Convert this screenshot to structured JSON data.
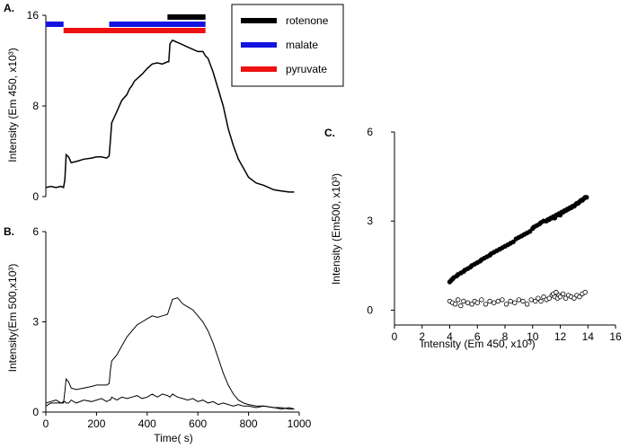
{
  "chart_data": [
    {
      "panel": "A.",
      "type": "line",
      "ylabel": "Intensity (Em 450, x10³)",
      "xlim": [
        0,
        1000
      ],
      "ylim": [
        0,
        16
      ],
      "yticks": [
        0,
        8,
        16
      ],
      "x": [
        0,
        20,
        40,
        60,
        70,
        75,
        80,
        90,
        100,
        120,
        150,
        180,
        200,
        220,
        240,
        250,
        255,
        260,
        280,
        300,
        320,
        330,
        340,
        350,
        380,
        400,
        420,
        440,
        460,
        480,
        485,
        490,
        500,
        520,
        540,
        560,
        580,
        600,
        620,
        630,
        640,
        660,
        680,
        700,
        720,
        740,
        760,
        780,
        800,
        830,
        860,
        900,
        930,
        960,
        980
      ],
      "values": [
        0.8,
        0.9,
        0.8,
        0.9,
        0.8,
        1.5,
        3.7,
        3.5,
        3.0,
        3.1,
        3.3,
        3.4,
        3.5,
        3.5,
        3.4,
        3.6,
        5.0,
        6.5,
        7.5,
        8.5,
        9.0,
        9.5,
        9.8,
        10.2,
        10.8,
        11.3,
        11.7,
        11.8,
        11.7,
        11.9,
        11.9,
        13.5,
        13.8,
        13.6,
        13.4,
        13.2,
        13.0,
        12.8,
        12.8,
        12.4,
        12.2,
        11.0,
        9.5,
        8.0,
        6.0,
        4.5,
        3.3,
        2.5,
        1.7,
        1.2,
        1.0,
        0.6,
        0.5,
        0.4,
        0.4
      ],
      "bars": [
        {
          "name": "rotenone",
          "color": "#000000",
          "start": 480,
          "end": 630,
          "level": 1
        },
        {
          "name": "malate",
          "color": "#1414e0",
          "start": 0,
          "end": 70,
          "level": 2
        },
        {
          "name": "malate",
          "color": "#1414e0",
          "start": 250,
          "end": 630,
          "level": 2
        },
        {
          "name": "pyruvate",
          "color": "#ee1111",
          "start": 70,
          "end": 630,
          "level": 3
        }
      ],
      "legend": {
        "position": "top-right",
        "entries": [
          {
            "label": "rotenone",
            "color": "#000000"
          },
          {
            "label": "malate",
            "color": "#1414e0"
          },
          {
            "label": "pyruvate",
            "color": "#ee1111"
          }
        ]
      }
    },
    {
      "panel": "B.",
      "type": "line",
      "xlabel": "Time( s)",
      "ylabel": "Intensity(Em 500,x10³)",
      "xlim": [
        0,
        1000
      ],
      "ylim": [
        0,
        6
      ],
      "xticks": [
        0,
        200,
        400,
        600,
        800,
        1000
      ],
      "yticks": [
        0,
        3,
        6
      ],
      "x": [
        0,
        20,
        40,
        60,
        70,
        75,
        80,
        90,
        100,
        120,
        150,
        180,
        200,
        220,
        240,
        250,
        255,
        260,
        280,
        300,
        320,
        340,
        360,
        380,
        400,
        420,
        440,
        460,
        480,
        490,
        500,
        520,
        540,
        560,
        580,
        600,
        620,
        640,
        660,
        680,
        700,
        720,
        740,
        760,
        780,
        800,
        830,
        860,
        900,
        930,
        960,
        980
      ],
      "series": [
        {
          "values": [
            0.2,
            0.3,
            0.3,
            0.3,
            0.3,
            0.7,
            1.1,
            1.0,
            0.8,
            0.75,
            0.8,
            0.85,
            0.9,
            0.9,
            0.9,
            0.95,
            1.4,
            1.7,
            1.9,
            2.2,
            2.5,
            2.7,
            2.9,
            3.0,
            3.1,
            3.2,
            3.15,
            3.2,
            3.25,
            3.5,
            3.75,
            3.8,
            3.6,
            3.5,
            3.4,
            3.2,
            3.0,
            2.7,
            2.3,
            1.8,
            1.3,
            0.9,
            0.6,
            0.4,
            0.3,
            0.25,
            0.2,
            0.2,
            0.15,
            0.15,
            0.1,
            0.1
          ]
        },
        {
          "values": [
            0.3,
            0.35,
            0.4,
            0.3,
            0.35,
            0.35,
            0.3,
            0.3,
            0.4,
            0.3,
            0.4,
            0.35,
            0.4,
            0.45,
            0.35,
            0.4,
            0.4,
            0.5,
            0.4,
            0.5,
            0.45,
            0.5,
            0.55,
            0.45,
            0.5,
            0.6,
            0.5,
            0.6,
            0.55,
            0.5,
            0.6,
            0.5,
            0.45,
            0.4,
            0.45,
            0.35,
            0.4,
            0.3,
            0.35,
            0.25,
            0.3,
            0.25,
            0.2,
            0.25,
            0.2,
            0.2,
            0.15,
            0.2,
            0.15,
            0.1,
            0.15,
            0.1
          ]
        }
      ]
    },
    {
      "panel": "C.",
      "type": "scatter",
      "xlabel": "Intensity (Em 450, x10³)",
      "ylabel": "Intensity (Em500, x10³)",
      "xlim": [
        0,
        16
      ],
      "ylim": [
        -0.5,
        6
      ],
      "xticks": [
        0,
        2,
        4,
        6,
        8,
        10,
        12,
        14,
        16
      ],
      "yticks": [
        0,
        3,
        6
      ],
      "series": [
        {
          "marker": "filled",
          "x": [
            4.0,
            4.1,
            4.2,
            4.3,
            4.5,
            4.6,
            4.8,
            5.0,
            5.1,
            5.3,
            5.5,
            5.6,
            5.8,
            6.0,
            6.2,
            6.3,
            6.5,
            6.7,
            6.9,
            7.0,
            7.2,
            7.4,
            7.6,
            7.8,
            8.0,
            8.2,
            8.4,
            8.6,
            8.8,
            9.0,
            9.2,
            9.4,
            9.6,
            9.8,
            10.0,
            10.1,
            10.3,
            10.5,
            10.6,
            10.8,
            11.0,
            11.1,
            11.2,
            11.3,
            11.4,
            11.5,
            11.6,
            11.7,
            11.8,
            11.9,
            12.0,
            12.1,
            12.2,
            12.3,
            12.4,
            12.5,
            12.6,
            12.7,
            12.8,
            12.9,
            13.0,
            13.1,
            13.2,
            13.3,
            13.4,
            13.5,
            13.6,
            13.7,
            13.8,
            13.9
          ],
          "y": [
            0.95,
            1.0,
            1.05,
            1.1,
            1.15,
            1.2,
            1.25,
            1.3,
            1.35,
            1.4,
            1.45,
            1.5,
            1.55,
            1.6,
            1.65,
            1.7,
            1.75,
            1.8,
            1.85,
            1.9,
            1.95,
            2.0,
            2.05,
            2.1,
            2.15,
            2.2,
            2.25,
            2.3,
            2.4,
            2.45,
            2.5,
            2.55,
            2.6,
            2.65,
            2.75,
            2.8,
            2.85,
            2.9,
            2.95,
            3.0,
            3.0,
            3.05,
            3.05,
            3.1,
            3.1,
            3.15,
            3.1,
            3.2,
            3.2,
            3.25,
            3.2,
            3.3,
            3.3,
            3.35,
            3.35,
            3.4,
            3.4,
            3.45,
            3.45,
            3.5,
            3.5,
            3.55,
            3.6,
            3.6,
            3.65,
            3.7,
            3.7,
            3.75,
            3.8,
            3.8
          ]
        },
        {
          "marker": "open",
          "x": [
            4.0,
            4.2,
            4.4,
            4.6,
            4.8,
            5.0,
            5.3,
            5.6,
            5.8,
            6.0,
            6.3,
            6.6,
            6.9,
            7.2,
            7.5,
            7.8,
            8.1,
            8.4,
            8.7,
            9.0,
            9.3,
            9.6,
            9.9,
            10.2,
            10.4,
            10.6,
            10.8,
            11.0,
            11.2,
            11.4,
            11.5,
            11.6,
            11.7,
            11.8,
            11.9,
            12.0,
            12.2,
            12.4,
            12.6,
            12.8,
            13.0,
            13.2,
            13.4,
            13.6,
            13.8
          ],
          "y": [
            0.3,
            0.25,
            0.2,
            0.35,
            0.15,
            0.3,
            0.25,
            0.2,
            0.3,
            0.25,
            0.35,
            0.2,
            0.3,
            0.25,
            0.3,
            0.35,
            0.2,
            0.3,
            0.25,
            0.35,
            0.3,
            0.2,
            0.35,
            0.3,
            0.4,
            0.3,
            0.45,
            0.35,
            0.4,
            0.5,
            0.55,
            0.45,
            0.6,
            0.4,
            0.5,
            0.45,
            0.55,
            0.4,
            0.5,
            0.45,
            0.4,
            0.5,
            0.45,
            0.55,
            0.6
          ]
        }
      ]
    }
  ]
}
